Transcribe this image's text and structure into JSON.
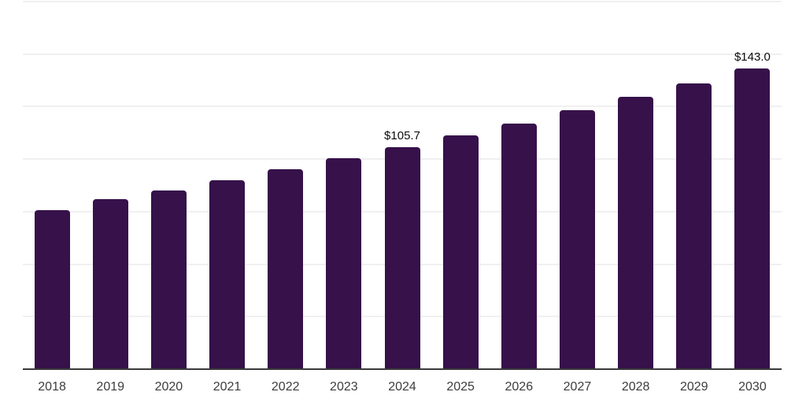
{
  "chart_data": {
    "type": "bar",
    "title": "",
    "xlabel": "",
    "ylabel": "",
    "categories": [
      "2018",
      "2019",
      "2020",
      "2021",
      "2022",
      "2023",
      "2024",
      "2025",
      "2026",
      "2027",
      "2028",
      "2029",
      "2030"
    ],
    "values": [
      75.7,
      80.9,
      85.2,
      90.0,
      95.3,
      100.5,
      105.7,
      111.2,
      117.1,
      123.2,
      129.5,
      136.2,
      143.0
    ],
    "annotations": [
      {
        "category": "2024",
        "text": "$105.7"
      },
      {
        "category": "2030",
        "text": "$143.0"
      }
    ],
    "ylim": [
      0,
      175
    ],
    "grid_step": 25,
    "grid": true,
    "legend": false,
    "y_axis_labels_visible": false,
    "colors": {
      "bar": "#36114a",
      "axis": "#3a3a3a",
      "gridline": "#f0f0f1",
      "tick_label": "#3d3d3d",
      "data_label": "#0d0d0d",
      "background": "#ffffff"
    }
  }
}
